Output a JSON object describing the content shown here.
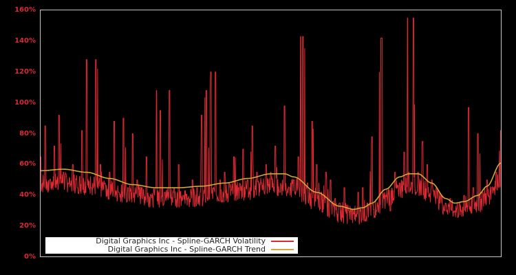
{
  "chart_data": {
    "type": "line",
    "title": "",
    "xlabel": "",
    "ylabel": "",
    "ylim": [
      0,
      160
    ],
    "yticks": [
      "0%",
      "20%",
      "40%",
      "60%",
      "80%",
      "100%",
      "120%",
      "140%",
      "160%"
    ],
    "grid": false,
    "legend_position": "lower left",
    "colors": {
      "background": "#000000",
      "axis": "#c8c8c8",
      "tick_label": "#dc2a33",
      "volatility": "#dc2a33",
      "trend": "#d4a838"
    },
    "series": [
      {
        "name": "Digital Graphics Inc - Spline-GARCH Volatility",
        "color": "#dc2a33",
        "x_frac": [
          0.0,
          0.01,
          0.02,
          0.03,
          0.04,
          0.05,
          0.06,
          0.07,
          0.08,
          0.09,
          0.1,
          0.11,
          0.12,
          0.13,
          0.14,
          0.15,
          0.16,
          0.17,
          0.18,
          0.19,
          0.2,
          0.21,
          0.22,
          0.23,
          0.24,
          0.25,
          0.26,
          0.27,
          0.28,
          0.29,
          0.3,
          0.31,
          0.32,
          0.33,
          0.34,
          0.35,
          0.36,
          0.37,
          0.38,
          0.39,
          0.4,
          0.41,
          0.42,
          0.43,
          0.44,
          0.45,
          0.46,
          0.47,
          0.48,
          0.49,
          0.5,
          0.51,
          0.52,
          0.53,
          0.54,
          0.55,
          0.56,
          0.57,
          0.58,
          0.59,
          0.6,
          0.61,
          0.62,
          0.63,
          0.64,
          0.65,
          0.66,
          0.67,
          0.68,
          0.69,
          0.7,
          0.71,
          0.72,
          0.73,
          0.74,
          0.75,
          0.76,
          0.77,
          0.78,
          0.79,
          0.8,
          0.81,
          0.82,
          0.83,
          0.84,
          0.85,
          0.86,
          0.87,
          0.88,
          0.89,
          0.9,
          0.91,
          0.92,
          0.93,
          0.94,
          0.95,
          0.96,
          0.97,
          0.98,
          0.99,
          1.0
        ],
        "values": [
          65,
          85,
          50,
          72,
          92,
          55,
          48,
          60,
          45,
          82,
          50,
          45,
          128,
          60,
          48,
          55,
          88,
          42,
          90,
          45,
          80,
          50,
          45,
          65,
          40,
          45,
          95,
          42,
          108,
          45,
          60,
          40,
          38,
          50,
          45,
          92,
          108,
          120,
          72,
          50,
          55,
          48,
          65,
          45,
          70,
          50,
          85,
          55,
          48,
          60,
          55,
          72,
          42,
          98,
          45,
          50,
          65,
          143,
          48,
          88,
          60,
          42,
          55,
          50,
          38,
          35,
          45,
          30,
          28,
          42,
          45,
          35,
          78,
          30,
          142,
          40,
          30,
          55,
          48,
          68,
          55,
          155,
          55,
          75,
          60,
          50,
          45,
          40,
          35,
          38,
          30,
          35,
          40,
          97,
          45,
          80,
          42,
          50,
          45,
          55,
          82
        ],
        "peaks": [
          {
            "x_frac": 0.1,
            "value": 128
          },
          {
            "x_frac": 0.252,
            "value": 108
          },
          {
            "x_frac": 0.38,
            "value": 120
          },
          {
            "x_frac": 0.565,
            "value": 143
          },
          {
            "x_frac": 0.742,
            "value": 142
          },
          {
            "x_frac": 0.797,
            "value": 155
          }
        ]
      },
      {
        "name": "Digital Graphics Inc - Spline-GARCH Trend",
        "color": "#d4a838",
        "x_frac": [
          0.0,
          0.05,
          0.1,
          0.15,
          0.2,
          0.25,
          0.3,
          0.35,
          0.4,
          0.45,
          0.5,
          0.53,
          0.55,
          0.6,
          0.65,
          0.68,
          0.7,
          0.72,
          0.75,
          0.78,
          0.8,
          0.82,
          0.85,
          0.88,
          0.9,
          0.92,
          0.95,
          0.97,
          1.0
        ],
        "values": [
          56,
          57,
          55,
          51,
          47,
          45,
          45,
          46,
          48,
          51,
          54,
          54,
          52,
          42,
          33,
          31,
          32,
          35,
          44,
          52,
          54,
          54,
          48,
          38,
          35,
          36,
          40,
          46,
          61
        ]
      }
    ]
  },
  "legend": {
    "items": [
      {
        "label": "Digital Graphics Inc - Spline-GARCH Volatility",
        "color": "#dc2a33"
      },
      {
        "label": "Digital Graphics Inc - Spline-GARCH Trend",
        "color": "#d4a838"
      }
    ]
  }
}
